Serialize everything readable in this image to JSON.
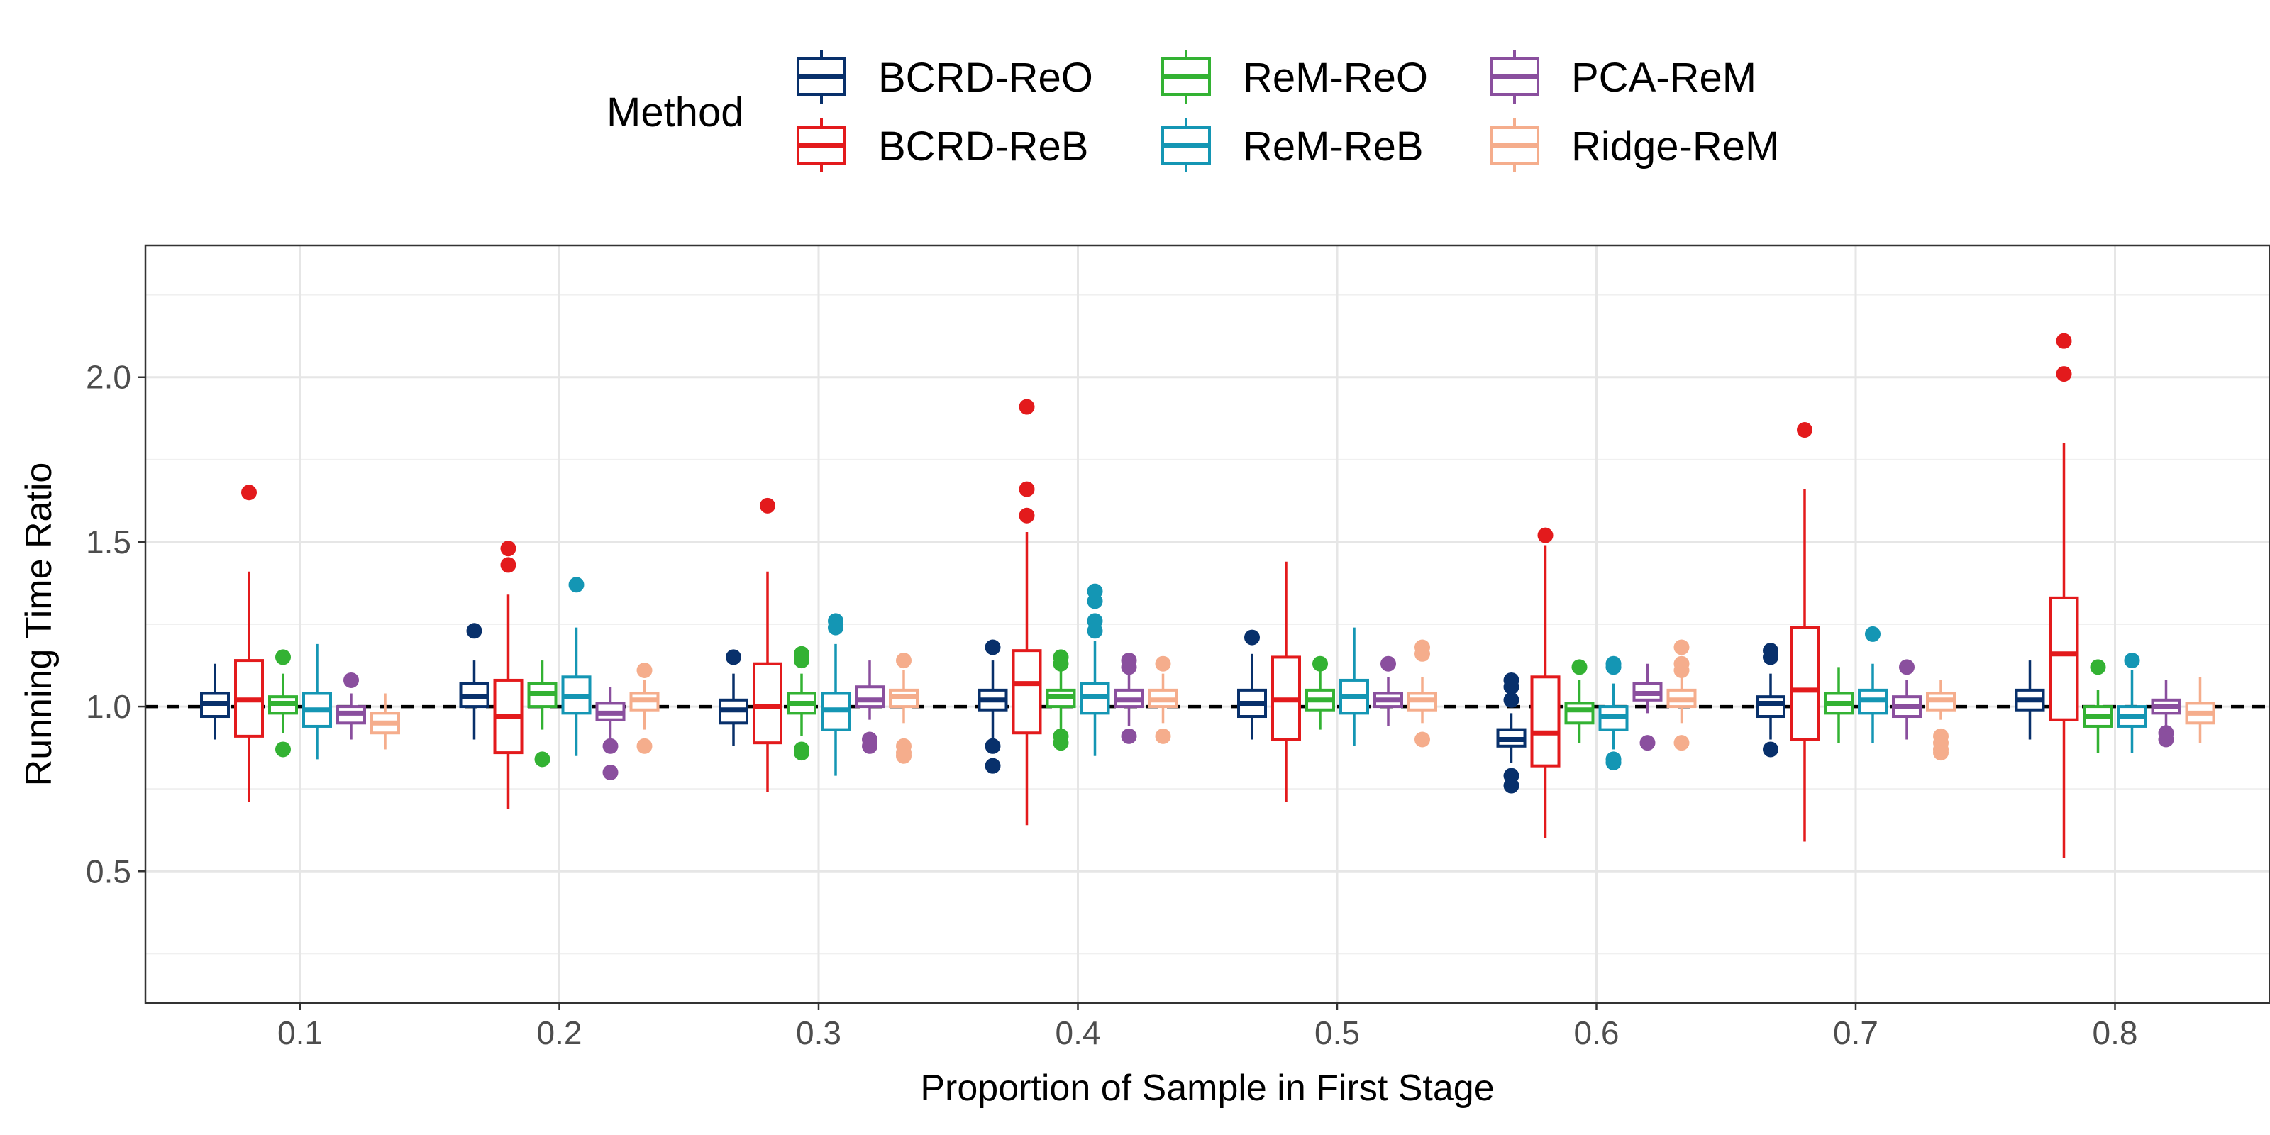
{
  "chart_data": {
    "type": "boxplot",
    "title": "",
    "xlabel": "Proportion of Sample in First Stage",
    "ylabel": "Running Time Ratio",
    "ylim": [
      0.1,
      2.4
    ],
    "yticks": [
      0.5,
      1.0,
      1.5,
      2.0
    ],
    "ytick_labels": [
      "0.5",
      "1.0",
      "1.5",
      "2.0"
    ],
    "reference_line": 1.0,
    "grid": true,
    "legend": {
      "title": "Method",
      "position": "top"
    },
    "categories": [
      "0.1",
      "0.2",
      "0.3",
      "0.4",
      "0.5",
      "0.6",
      "0.7",
      "0.8"
    ],
    "series": [
      {
        "name": "BCRD-ReO",
        "color": "#08306b",
        "boxes": [
          {
            "wl": 0.9,
            "q1": 0.97,
            "med": 1.01,
            "q3": 1.04,
            "wh": 1.13,
            "out": []
          },
          {
            "wl": 0.9,
            "q1": 1.0,
            "med": 1.03,
            "q3": 1.07,
            "wh": 1.14,
            "out": [
              1.23
            ]
          },
          {
            "wl": 0.88,
            "q1": 0.95,
            "med": 0.99,
            "q3": 1.02,
            "wh": 1.1,
            "out": [
              1.15
            ]
          },
          {
            "wl": 0.9,
            "q1": 0.99,
            "med": 1.02,
            "q3": 1.05,
            "wh": 1.14,
            "out": [
              1.18,
              0.88,
              0.82
            ]
          },
          {
            "wl": 0.9,
            "q1": 0.97,
            "med": 1.01,
            "q3": 1.05,
            "wh": 1.16,
            "out": [
              1.21
            ]
          },
          {
            "wl": 0.83,
            "q1": 0.88,
            "med": 0.9,
            "q3": 0.93,
            "wh": 0.98,
            "out": [
              1.08,
              1.06,
              1.02,
              0.79,
              0.76
            ]
          },
          {
            "wl": 0.9,
            "q1": 0.97,
            "med": 1.01,
            "q3": 1.03,
            "wh": 1.1,
            "out": [
              1.17,
              1.15,
              0.87
            ]
          },
          {
            "wl": 0.9,
            "q1": 0.99,
            "med": 1.02,
            "q3": 1.05,
            "wh": 1.14,
            "out": []
          }
        ]
      },
      {
        "name": "BCRD-ReB",
        "color": "#e31a1c",
        "boxes": [
          {
            "wl": 0.71,
            "q1": 0.91,
            "med": 1.02,
            "q3": 1.14,
            "wh": 1.41,
            "out": [
              1.65
            ]
          },
          {
            "wl": 0.69,
            "q1": 0.86,
            "med": 0.97,
            "q3": 1.08,
            "wh": 1.34,
            "out": [
              1.48,
              1.43
            ]
          },
          {
            "wl": 0.74,
            "q1": 0.89,
            "med": 1.0,
            "q3": 1.13,
            "wh": 1.41,
            "out": [
              1.61
            ]
          },
          {
            "wl": 0.64,
            "q1": 0.92,
            "med": 1.07,
            "q3": 1.17,
            "wh": 1.53,
            "out": [
              1.91,
              1.66,
              1.58
            ]
          },
          {
            "wl": 0.71,
            "q1": 0.9,
            "med": 1.02,
            "q3": 1.15,
            "wh": 1.44,
            "out": []
          },
          {
            "wl": 0.6,
            "q1": 0.82,
            "med": 0.92,
            "q3": 1.09,
            "wh": 1.49,
            "out": [
              1.52
            ]
          },
          {
            "wl": 0.59,
            "q1": 0.9,
            "med": 1.05,
            "q3": 1.24,
            "wh": 1.66,
            "out": [
              1.84
            ]
          },
          {
            "wl": 0.54,
            "q1": 0.96,
            "med": 1.16,
            "q3": 1.33,
            "wh": 1.8,
            "out": [
              2.11,
              2.01
            ]
          }
        ]
      },
      {
        "name": "ReM-ReO",
        "color": "#33b233",
        "boxes": [
          {
            "wl": 0.92,
            "q1": 0.98,
            "med": 1.01,
            "q3": 1.03,
            "wh": 1.1,
            "out": [
              1.15,
              0.87
            ]
          },
          {
            "wl": 0.93,
            "q1": 1.0,
            "med": 1.04,
            "q3": 1.07,
            "wh": 1.14,
            "out": [
              0.84
            ]
          },
          {
            "wl": 0.91,
            "q1": 0.98,
            "med": 1.01,
            "q3": 1.04,
            "wh": 1.1,
            "out": [
              1.16,
              1.14,
              0.87,
              0.86
            ]
          },
          {
            "wl": 0.92,
            "q1": 1.0,
            "med": 1.03,
            "q3": 1.05,
            "wh": 1.12,
            "out": [
              1.15,
              1.13,
              0.91,
              0.89
            ]
          },
          {
            "wl": 0.93,
            "q1": 0.99,
            "med": 1.02,
            "q3": 1.05,
            "wh": 1.11,
            "out": [
              1.13
            ]
          },
          {
            "wl": 0.89,
            "q1": 0.95,
            "med": 0.99,
            "q3": 1.01,
            "wh": 1.08,
            "out": [
              1.12
            ]
          },
          {
            "wl": 0.89,
            "q1": 0.98,
            "med": 1.01,
            "q3": 1.04,
            "wh": 1.12,
            "out": []
          },
          {
            "wl": 0.86,
            "q1": 0.94,
            "med": 0.97,
            "q3": 1.0,
            "wh": 1.05,
            "out": [
              1.12
            ]
          }
        ]
      },
      {
        "name": "ReM-ReB",
        "color": "#1496b4",
        "boxes": [
          {
            "wl": 0.84,
            "q1": 0.94,
            "med": 0.99,
            "q3": 1.04,
            "wh": 1.19,
            "out": []
          },
          {
            "wl": 0.85,
            "q1": 0.98,
            "med": 1.03,
            "q3": 1.09,
            "wh": 1.24,
            "out": [
              1.37
            ]
          },
          {
            "wl": 0.79,
            "q1": 0.93,
            "med": 0.99,
            "q3": 1.04,
            "wh": 1.19,
            "out": [
              1.26,
              1.24
            ]
          },
          {
            "wl": 0.85,
            "q1": 0.98,
            "med": 1.03,
            "q3": 1.07,
            "wh": 1.2,
            "out": [
              1.35,
              1.32,
              1.26,
              1.23
            ]
          },
          {
            "wl": 0.88,
            "q1": 0.98,
            "med": 1.03,
            "q3": 1.08,
            "wh": 1.24,
            "out": []
          },
          {
            "wl": 0.87,
            "q1": 0.93,
            "med": 0.97,
            "q3": 1.0,
            "wh": 1.07,
            "out": [
              1.13,
              1.12,
              0.84,
              0.83
            ]
          },
          {
            "wl": 0.89,
            "q1": 0.98,
            "med": 1.02,
            "q3": 1.05,
            "wh": 1.13,
            "out": [
              1.22
            ]
          },
          {
            "wl": 0.86,
            "q1": 0.94,
            "med": 0.97,
            "q3": 1.0,
            "wh": 1.11,
            "out": [
              1.14
            ]
          }
        ]
      },
      {
        "name": "PCA-ReM",
        "color": "#8a4f9e",
        "boxes": [
          {
            "wl": 0.9,
            "q1": 0.95,
            "med": 0.98,
            "q3": 1.0,
            "wh": 1.04,
            "out": [
              1.08
            ]
          },
          {
            "wl": 0.9,
            "q1": 0.96,
            "med": 0.98,
            "q3": 1.01,
            "wh": 1.06,
            "out": [
              0.88,
              0.8
            ]
          },
          {
            "wl": 0.96,
            "q1": 1.0,
            "med": 1.02,
            "q3": 1.06,
            "wh": 1.14,
            "out": [
              0.9,
              0.88
            ]
          },
          {
            "wl": 0.94,
            "q1": 1.0,
            "med": 1.02,
            "q3": 1.05,
            "wh": 1.1,
            "out": [
              1.14,
              1.12,
              0.91
            ]
          },
          {
            "wl": 0.94,
            "q1": 1.0,
            "med": 1.02,
            "q3": 1.04,
            "wh": 1.09,
            "out": [
              1.13
            ]
          },
          {
            "wl": 0.98,
            "q1": 1.02,
            "med": 1.04,
            "q3": 1.07,
            "wh": 1.13,
            "out": [
              0.89
            ]
          },
          {
            "wl": 0.9,
            "q1": 0.97,
            "med": 1.0,
            "q3": 1.03,
            "wh": 1.08,
            "out": [
              1.12
            ]
          },
          {
            "wl": 0.93,
            "q1": 0.98,
            "med": 1.0,
            "q3": 1.02,
            "wh": 1.08,
            "out": [
              0.92,
              0.9
            ]
          }
        ]
      },
      {
        "name": "Ridge-ReM",
        "color": "#f5ad8c",
        "boxes": [
          {
            "wl": 0.87,
            "q1": 0.92,
            "med": 0.95,
            "q3": 0.98,
            "wh": 1.04,
            "out": []
          },
          {
            "wl": 0.93,
            "q1": 0.99,
            "med": 1.02,
            "q3": 1.04,
            "wh": 1.08,
            "out": [
              1.11,
              0.88
            ]
          },
          {
            "wl": 0.95,
            "q1": 1.0,
            "med": 1.03,
            "q3": 1.05,
            "wh": 1.11,
            "out": [
              1.14,
              0.88,
              0.86,
              0.85
            ]
          },
          {
            "wl": 0.95,
            "q1": 1.0,
            "med": 1.02,
            "q3": 1.05,
            "wh": 1.1,
            "out": [
              1.13,
              0.91
            ]
          },
          {
            "wl": 0.95,
            "q1": 0.99,
            "med": 1.02,
            "q3": 1.04,
            "wh": 1.09,
            "out": [
              1.18,
              1.16,
              0.9
            ]
          },
          {
            "wl": 0.95,
            "q1": 1.0,
            "med": 1.02,
            "q3": 1.05,
            "wh": 1.1,
            "out": [
              1.18,
              1.13,
              1.11,
              0.89
            ]
          },
          {
            "wl": 0.96,
            "q1": 0.99,
            "med": 1.02,
            "q3": 1.04,
            "wh": 1.08,
            "out": [
              0.91,
              0.89,
              0.87,
              0.86
            ]
          },
          {
            "wl": 0.89,
            "q1": 0.95,
            "med": 0.98,
            "q3": 1.01,
            "wh": 1.09,
            "out": []
          }
        ]
      }
    ]
  }
}
